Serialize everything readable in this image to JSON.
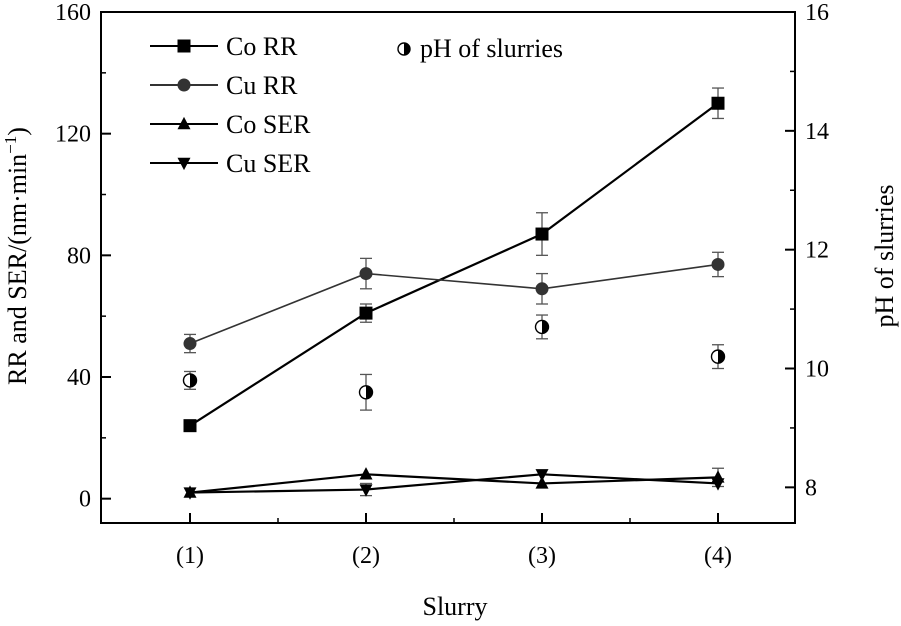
{
  "chart_data": {
    "type": "line",
    "xlabel": "Slurry",
    "ylabel_left": "RR and SER/(nm·min",
    "ylabel_left_sup": "−1",
    "ylabel_left_close": ")",
    "ylabel_right": "pH of slurries",
    "categories": [
      "(1)",
      "(2)",
      "(3)",
      "(4)"
    ],
    "ylim_left": [
      -8,
      160
    ],
    "ylim_right": [
      7.4,
      16
    ],
    "yticks_left": [
      "0",
      "40",
      "80",
      "120",
      "160"
    ],
    "yticks_right": [
      "8",
      "10",
      "12",
      "14",
      "16"
    ],
    "grid": false,
    "legend_position": "top-left",
    "series": [
      {
        "name": "Co RR",
        "marker": "square",
        "color": "#000000",
        "values": [
          24,
          61,
          87,
          130
        ],
        "errors": [
          0,
          3,
          7,
          5
        ]
      },
      {
        "name": "Cu RR",
        "marker": "circle",
        "color": "#333333",
        "values": [
          51,
          74,
          69,
          77
        ],
        "errors": [
          3,
          5,
          5,
          4
        ]
      },
      {
        "name": "Co SER",
        "marker": "triangle-up",
        "color": "#000000",
        "values": [
          2,
          8,
          5,
          7
        ],
        "errors": [
          0,
          0,
          0,
          3
        ]
      },
      {
        "name": "Cu SER",
        "marker": "triangle-down",
        "color": "#000000",
        "values": [
          2,
          3,
          8,
          5
        ],
        "errors": [
          0,
          2,
          0,
          0
        ]
      }
    ],
    "ph_series": {
      "name": "pH of slurries",
      "marker": "half-filled-circle",
      "axis": "right",
      "values": [
        9.8,
        9.6,
        10.7,
        10.2
      ],
      "errors": [
        0.15,
        0.3,
        0.2,
        0.2
      ]
    }
  }
}
